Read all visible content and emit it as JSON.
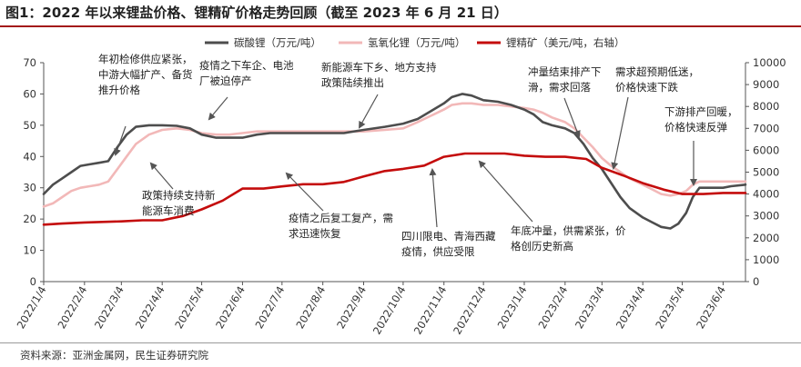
{
  "header": {
    "title": "图1：2022 年以来锂盐价格、锂精矿价格走势回顾（截至 2023 年 6 月 21 日）"
  },
  "footer": {
    "source": "资料来源：亚洲金属网，民生证券研究院"
  },
  "colors": {
    "title_rule": "#a31a1a",
    "carbonate": "#4d4d4d",
    "hydroxide": "#f2b8b8",
    "spodumene": "#c40c0c",
    "annotation_arrow": "#555555"
  },
  "chart_data": {
    "type": "line",
    "x_tick_labels": [
      "2022/1/4",
      "2022/2/4",
      "2022/3/4",
      "2022/4/4",
      "2022/5/4",
      "2022/6/4",
      "2022/7/4",
      "2022/8/4",
      "2022/9/4",
      "2022/10/4",
      "2022/11/4",
      "2022/12/4",
      "2023/1/4",
      "2023/2/4",
      "2023/3/4",
      "2023/4/4",
      "2023/5/4",
      "2023/6/4"
    ],
    "x_range": [
      "2022/1/4",
      "2023/6/21"
    ],
    "y_left": {
      "min": 0,
      "max": 70,
      "ticks": [
        0,
        10,
        20,
        30,
        40,
        50,
        60,
        70
      ]
    },
    "y_right": {
      "min": 0,
      "max": 10000,
      "ticks": [
        0,
        1000,
        2000,
        3000,
        4000,
        5000,
        6000,
        7000,
        8000,
        9000,
        10000
      ]
    },
    "grid": false,
    "legend_position": "top",
    "series": [
      {
        "name": "碳酸锂（万元/吨）",
        "axis": "left",
        "points": [
          [
            "2022/1/4",
            28
          ],
          [
            "2022/1/11",
            31
          ],
          [
            "2022/1/18",
            33
          ],
          [
            "2022/1/25",
            35
          ],
          [
            "2022/2/1",
            37
          ],
          [
            "2022/2/8",
            37.5
          ],
          [
            "2022/2/15",
            38
          ],
          [
            "2022/2/22",
            38.5
          ],
          [
            "2022/3/1",
            43
          ],
          [
            "2022/3/8",
            47
          ],
          [
            "2022/3/15",
            49.5
          ],
          [
            "2022/3/25",
            50
          ],
          [
            "2022/4/4",
            50
          ],
          [
            "2022/4/15",
            49.8
          ],
          [
            "2022/4/25",
            49
          ],
          [
            "2022/5/4",
            47
          ],
          [
            "2022/5/15",
            46
          ],
          [
            "2022/5/25",
            46
          ],
          [
            "2022/6/4",
            46
          ],
          [
            "2022/6/15",
            47
          ],
          [
            "2022/6/25",
            47.5
          ],
          [
            "2022/7/4",
            47.5
          ],
          [
            "2022/7/20",
            47.5
          ],
          [
            "2022/8/4",
            47.5
          ],
          [
            "2022/8/20",
            47.5
          ],
          [
            "2022/9/4",
            48.5
          ],
          [
            "2022/9/20",
            49.5
          ],
          [
            "2022/10/4",
            50.5
          ],
          [
            "2022/10/15",
            52
          ],
          [
            "2022/10/25",
            54.5
          ],
          [
            "2022/11/4",
            57
          ],
          [
            "2022/11/10",
            59
          ],
          [
            "2022/11/18",
            60
          ],
          [
            "2022/11/25",
            59.5
          ],
          [
            "2022/12/4",
            58
          ],
          [
            "2022/12/15",
            57.5
          ],
          [
            "2022/12/25",
            56.5
          ],
          [
            "2023/1/4",
            55
          ],
          [
            "2023/1/11",
            53.5
          ],
          [
            "2023/1/18",
            51
          ],
          [
            "2023/1/25",
            50
          ],
          [
            "2023/2/4",
            49
          ],
          [
            "2023/2/11",
            47.5
          ],
          [
            "2023/2/18",
            44
          ],
          [
            "2023/2/25",
            39.5
          ],
          [
            "2023/3/4",
            36
          ],
          [
            "2023/3/11",
            31.5
          ],
          [
            "2023/3/18",
            27
          ],
          [
            "2023/3/25",
            23.5
          ],
          [
            "2023/4/4",
            20.5
          ],
          [
            "2023/4/11",
            19
          ],
          [
            "2023/4/18",
            17.5
          ],
          [
            "2023/4/25",
            17
          ],
          [
            "2023/5/1",
            18.5
          ],
          [
            "2023/5/7",
            22
          ],
          [
            "2023/5/12",
            27
          ],
          [
            "2023/5/17",
            30
          ],
          [
            "2023/5/25",
            30
          ],
          [
            "2023/6/4",
            30
          ],
          [
            "2023/6/10",
            30.5
          ],
          [
            "2023/6/21",
            31
          ]
        ]
      },
      {
        "name": "氢氧化锂（万元/吨）",
        "axis": "left",
        "points": [
          [
            "2022/1/4",
            24
          ],
          [
            "2022/1/11",
            25
          ],
          [
            "2022/1/18",
            27
          ],
          [
            "2022/1/25",
            29
          ],
          [
            "2022/2/1",
            30
          ],
          [
            "2022/2/8",
            30.5
          ],
          [
            "2022/2/15",
            31
          ],
          [
            "2022/2/22",
            32
          ],
          [
            "2022/3/1",
            36
          ],
          [
            "2022/3/8",
            40
          ],
          [
            "2022/3/15",
            44
          ],
          [
            "2022/3/25",
            47
          ],
          [
            "2022/4/4",
            48.5
          ],
          [
            "2022/4/15",
            49
          ],
          [
            "2022/4/25",
            48.5
          ],
          [
            "2022/5/4",
            47.5
          ],
          [
            "2022/5/15",
            47
          ],
          [
            "2022/5/25",
            47
          ],
          [
            "2022/6/4",
            47.5
          ],
          [
            "2022/6/15",
            48
          ],
          [
            "2022/6/25",
            48
          ],
          [
            "2022/7/4",
            48
          ],
          [
            "2022/7/20",
            48
          ],
          [
            "2022/8/4",
            48
          ],
          [
            "2022/8/20",
            48
          ],
          [
            "2022/9/4",
            48
          ],
          [
            "2022/9/20",
            48.5
          ],
          [
            "2022/10/4",
            49
          ],
          [
            "2022/10/15",
            51
          ],
          [
            "2022/10/25",
            53
          ],
          [
            "2022/11/4",
            55
          ],
          [
            "2022/11/10",
            56.5
          ],
          [
            "2022/11/18",
            57
          ],
          [
            "2022/11/25",
            57
          ],
          [
            "2022/12/4",
            56.5
          ],
          [
            "2022/12/15",
            56.5
          ],
          [
            "2022/12/25",
            56
          ],
          [
            "2023/1/4",
            55.5
          ],
          [
            "2023/1/11",
            55
          ],
          [
            "2023/1/18",
            54
          ],
          [
            "2023/1/25",
            52.5
          ],
          [
            "2023/2/4",
            51
          ],
          [
            "2023/2/11",
            49
          ],
          [
            "2023/2/18",
            46
          ],
          [
            "2023/2/25",
            43
          ],
          [
            "2023/3/4",
            39.5
          ],
          [
            "2023/3/11",
            37
          ],
          [
            "2023/3/18",
            35
          ],
          [
            "2023/3/25",
            33
          ],
          [
            "2023/4/4",
            31
          ],
          [
            "2023/4/11",
            29.5
          ],
          [
            "2023/4/18",
            28
          ],
          [
            "2023/4/25",
            27.5
          ],
          [
            "2023/5/1",
            28
          ],
          [
            "2023/5/7",
            29
          ],
          [
            "2023/5/12",
            31
          ],
          [
            "2023/5/17",
            32
          ],
          [
            "2023/5/25",
            32
          ],
          [
            "2023/6/4",
            32
          ],
          [
            "2023/6/10",
            32
          ],
          [
            "2023/6/21",
            32
          ]
        ]
      },
      {
        "name": "锂精矿（美元/吨，右轴）",
        "axis": "right",
        "points": [
          [
            "2022/1/4",
            2600
          ],
          [
            "2022/1/18",
            2650
          ],
          [
            "2022/2/4",
            2700
          ],
          [
            "2022/3/4",
            2750
          ],
          [
            "2022/3/20",
            2800
          ],
          [
            "2022/4/4",
            2800
          ],
          [
            "2022/4/20",
            3000
          ],
          [
            "2022/5/4",
            3300
          ],
          [
            "2022/5/20",
            3700
          ],
          [
            "2022/6/4",
            4250
          ],
          [
            "2022/6/20",
            4250
          ],
          [
            "2022/7/4",
            4350
          ],
          [
            "2022/7/20",
            4450
          ],
          [
            "2022/8/4",
            4450
          ],
          [
            "2022/8/20",
            4550
          ],
          [
            "2022/9/4",
            4800
          ],
          [
            "2022/9/20",
            5050
          ],
          [
            "2022/10/4",
            5150
          ],
          [
            "2022/10/20",
            5300
          ],
          [
            "2022/11/4",
            5700
          ],
          [
            "2022/11/20",
            5850
          ],
          [
            "2022/12/4",
            5850
          ],
          [
            "2022/12/20",
            5850
          ],
          [
            "2023/1/4",
            5750
          ],
          [
            "2023/1/20",
            5700
          ],
          [
            "2023/2/4",
            5700
          ],
          [
            "2023/2/20",
            5600
          ],
          [
            "2023/3/4",
            5200
          ],
          [
            "2023/3/20",
            4850
          ],
          [
            "2023/4/4",
            4500
          ],
          [
            "2023/4/20",
            4200
          ],
          [
            "2023/5/4",
            4000
          ],
          [
            "2023/5/20",
            4000
          ],
          [
            "2023/6/4",
            4050
          ],
          [
            "2023/6/21",
            4050
          ]
        ]
      }
    ],
    "annotations": [
      {
        "lines": [
          "年初检修供应紧张，",
          "中游大幅扩产、备货",
          "推升价格"
        ]
      },
      {
        "lines": [
          "疫情之下车企、电池",
          "厂被迫停产"
        ]
      },
      {
        "lines": [
          "新能源车下乡、地方支持",
          "政策陆续推出"
        ]
      },
      {
        "lines": [
          "冲量结束排产下",
          "滑，需求回落"
        ]
      },
      {
        "lines": [
          "需求超预期低迷，",
          "价格快速下跌"
        ]
      },
      {
        "lines": [
          "下游排产回暖，",
          "价格快速反弹"
        ]
      },
      {
        "lines": [
          "政策持续支持新",
          "能源车消费"
        ]
      },
      {
        "lines": [
          "疫情之后复工复产，需",
          "求迅速恢复"
        ]
      },
      {
        "lines": [
          "四川限电、青海西藏",
          "疫情，供应受限"
        ]
      },
      {
        "lines": [
          "年底冲量，供需紧张，价",
          "格创历史新高"
        ]
      }
    ]
  }
}
